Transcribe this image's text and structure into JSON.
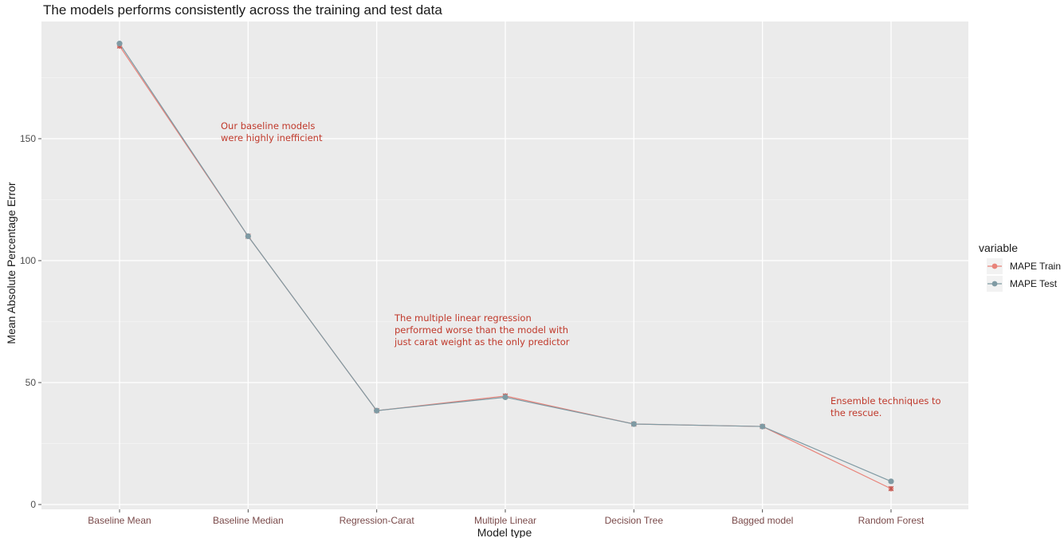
{
  "chart_data": {
    "type": "line",
    "title": "The models performs consistently across the training and test data",
    "xlabel": "Model type",
    "ylabel": "Mean Absolute Percentage Error",
    "categories": [
      "Baseline Mean",
      "Baseline Median",
      "Regression-Carat",
      "Multiple Linear",
      "Decision Tree",
      "Bagged model",
      "Random Forest"
    ],
    "ylim": [
      0,
      199
    ],
    "yticks": [
      0,
      50,
      100,
      150
    ],
    "grid": true,
    "legend": {
      "title": "variable",
      "position": "right"
    },
    "series": [
      {
        "name": "MAPE Train",
        "color": "#e8837a",
        "values": [
          188,
          110,
          38.5,
          44.5,
          33,
          32,
          6.5
        ]
      },
      {
        "name": "MAPE Test",
        "color": "#7f9aa3",
        "values": [
          189,
          110,
          38.5,
          44,
          33,
          32,
          9.5
        ]
      }
    ],
    "annotations": [
      {
        "lines": [
          "Our baseline models",
          "were highly inefficient"
        ]
      },
      {
        "lines": [
          "The multiple linear regression",
          "performed worse than the model with",
          "just carat weight as the only predictor"
        ]
      },
      {
        "lines": [
          "Ensemble techniques to",
          "the rescue."
        ]
      }
    ]
  }
}
